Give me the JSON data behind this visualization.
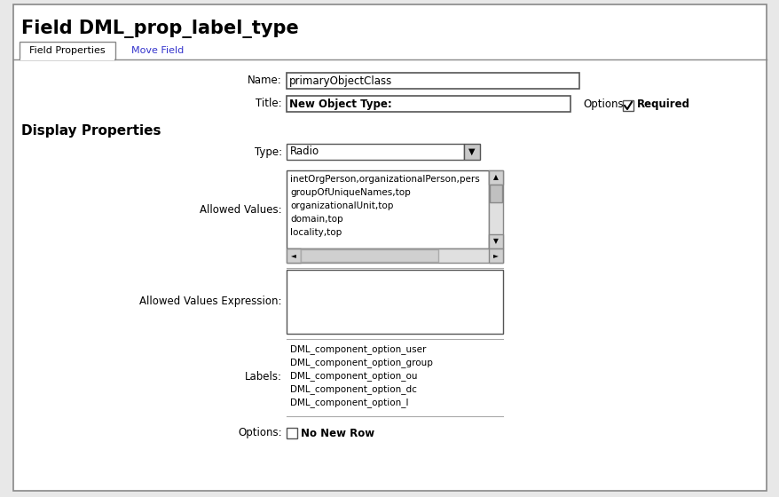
{
  "title": "Field DML_prop_label_type",
  "tab1": "Field Properties",
  "tab2": "Move Field",
  "name_label": "Name:",
  "name_value": "primaryObjectClass",
  "title_label": "Title:",
  "title_value": "New Object Type:",
  "options_label": "Options:",
  "required_label": "Required",
  "display_props_label": "Display Properties",
  "type_label": "Type:",
  "type_value": "Radio",
  "allowed_values_label": "Allowed Values:",
  "allowed_values_lines": [
    "inetOrgPerson,organizationalPerson,pers",
    "groupOfUniqueNames,top",
    "organizationalUnit,top",
    "domain,top",
    "locality,top"
  ],
  "allowed_values_expr_label": "Allowed Values Expression:",
  "labels_label": "Labels:",
  "labels_lines": [
    "DML_component_option_user",
    "DML_component_option_group",
    "DML_component_option_ou",
    "DML_component_option_dc",
    "DML_component_option_l"
  ],
  "options2_label": "Options:",
  "no_new_row_label": "No New Row",
  "bg_color": "#ffffff",
  "outer_border_color": "#999999",
  "tab2_color": "#3333cc",
  "title_font_size": 15,
  "label_font_size": 8.5,
  "content_font_size": 8.5,
  "header_font_size": 11
}
